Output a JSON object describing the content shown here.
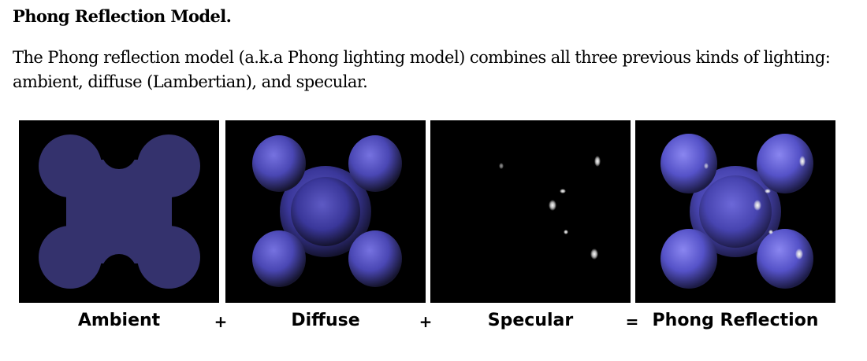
{
  "heading": "Phong Reflection Model.",
  "paragraph": "The Phong reflection model (a.k.a Phong lighting model) combines all three previous kinds of lighting: ambient, diffuse (Lambertian), and specular.",
  "figure": {
    "captions": [
      "Ambient",
      "Diffuse",
      "Specular",
      "Phong Reflection"
    ],
    "operators": [
      "+",
      "+",
      "="
    ]
  },
  "colors": {
    "ambient": "#34326d",
    "diffuse_highlight": "#6f6bd8",
    "background": "#000000"
  }
}
